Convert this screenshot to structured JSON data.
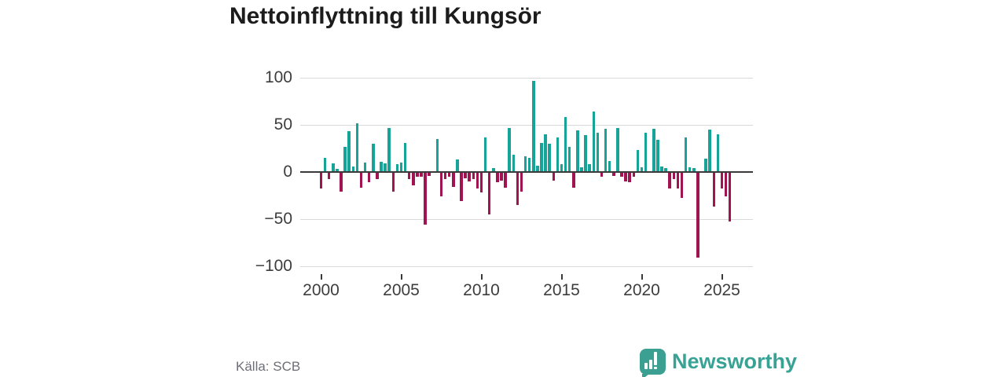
{
  "chart": {
    "title": "Nettoinflyttning till Kungsör",
    "y_tick_labels": [
      "100",
      "50",
      "0",
      "−50",
      "−100"
    ]
  },
  "chart_data": {
    "type": "bar",
    "title": "Nettoinflyttning till Kungsör",
    "x_unit": "quarter",
    "frequency": "quarterly",
    "x_start": "2000 Q1",
    "x_end": "2025 Q3",
    "x_tick_labels": [
      "2000",
      "2005",
      "2010",
      "2015",
      "2020",
      "2025"
    ],
    "ylim": [
      -100,
      100
    ],
    "y_tick_values": [
      100,
      50,
      0,
      -50,
      -100
    ],
    "grid": "horizontal",
    "positive_color": "#17a398",
    "negative_color": "#a21352",
    "values": [
      -17,
      15,
      -7,
      9,
      3,
      -20,
      27,
      43,
      6,
      52,
      -16,
      10,
      -10,
      30,
      -7,
      11,
      9,
      47,
      -20,
      8,
      10,
      31,
      -7,
      -13,
      -4,
      -4,
      -55,
      -3,
      0,
      35,
      -25,
      -7,
      -4,
      -15,
      13,
      -30,
      -6,
      -9,
      -7,
      -17,
      -21,
      37,
      -44,
      4,
      -10,
      -8,
      -16,
      47,
      18,
      -34,
      -20,
      17,
      15,
      97,
      7,
      31,
      40,
      30,
      -8,
      37,
      8,
      58,
      27,
      -16,
      44,
      5,
      39,
      8,
      64,
      42,
      -4,
      46,
      12,
      -3,
      47,
      -4,
      -9,
      -10,
      -4,
      23,
      5,
      42,
      0,
      46,
      34,
      6,
      4,
      -17,
      -7,
      -17,
      -27,
      37,
      5,
      4,
      -90,
      0,
      14,
      45,
      -36,
      40,
      -17,
      -25,
      -52
    ]
  },
  "footer": {
    "source": "Källa: SCB",
    "brand": "Newsworthy"
  }
}
